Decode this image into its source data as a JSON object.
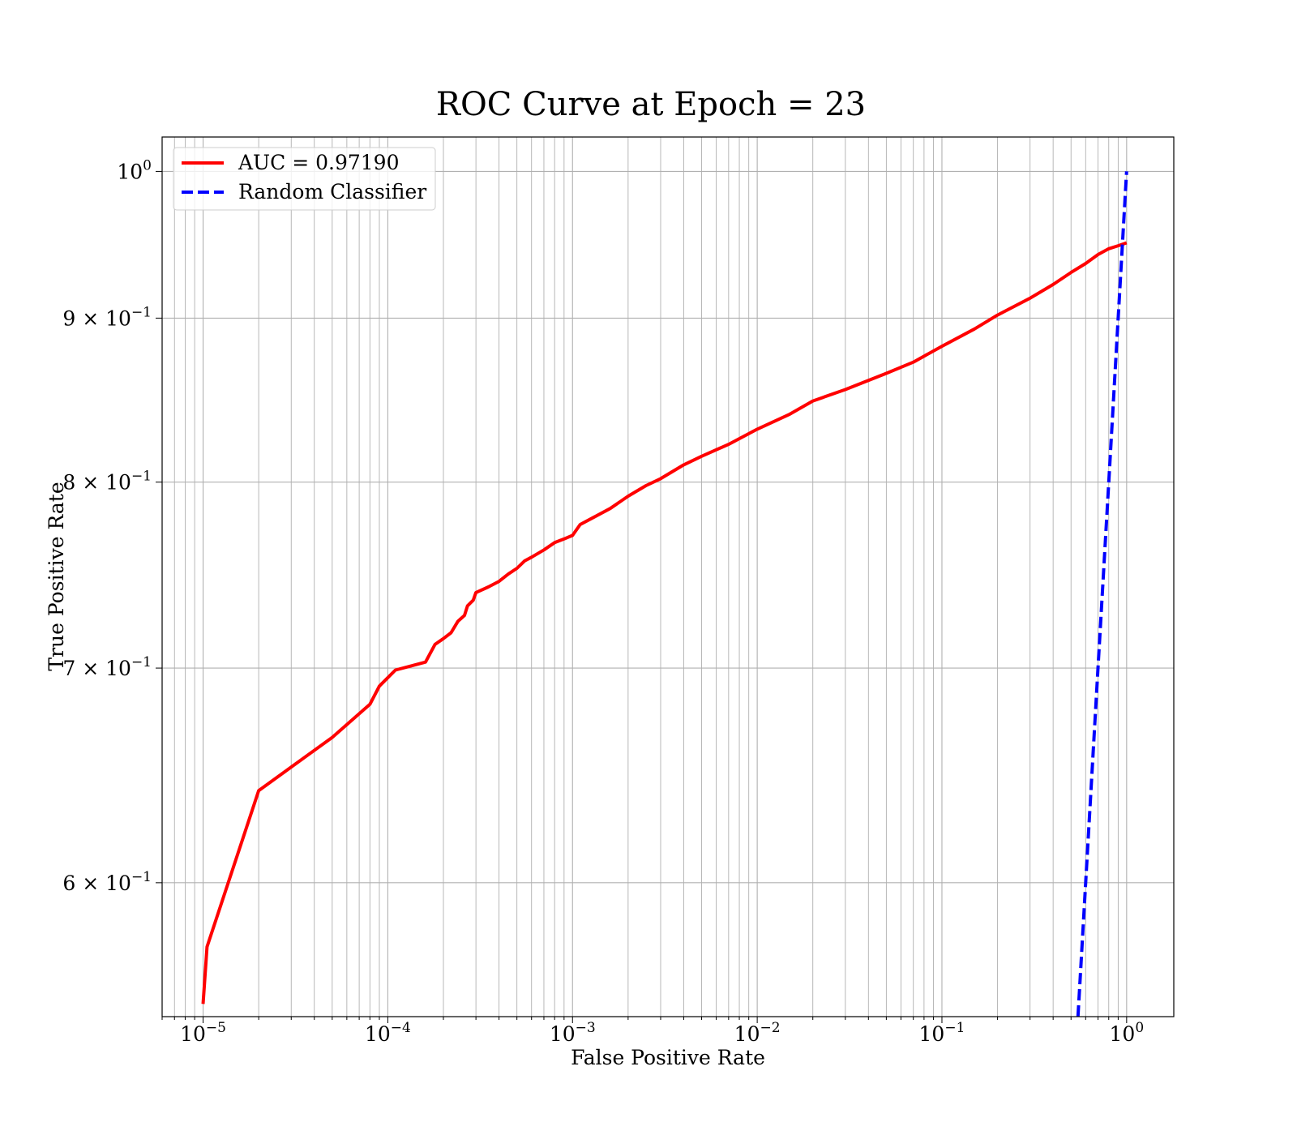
{
  "chart_data": {
    "type": "line",
    "title": "ROC Curve at Epoch = 23",
    "xlabel": "False Positive Rate",
    "ylabel": "True Positive Rate",
    "xscale": "log",
    "yscale": "log",
    "xlim": [
      6e-06,
      1.8
    ],
    "ylim": [
      0.545,
      1.025
    ],
    "grid": "major-and-minor",
    "legend_placement": "upper-left",
    "x_tick_labels": [
      {
        "base": "10",
        "exp": "−5",
        "value": 1e-05
      },
      {
        "base": "10",
        "exp": "−4",
        "value": 0.0001
      },
      {
        "base": "10",
        "exp": "−3",
        "value": 0.001
      },
      {
        "base": "10",
        "exp": "−2",
        "value": 0.01
      },
      {
        "base": "10",
        "exp": "−1",
        "value": 0.1
      },
      {
        "base": "10",
        "exp": "0",
        "value": 1
      }
    ],
    "y_tick_labels": [
      {
        "mant": "",
        "base": "10",
        "exp": "0",
        "value": 1.0
      },
      {
        "mant": "9 × ",
        "base": "10",
        "exp": "−1",
        "value": 0.9
      },
      {
        "mant": "8 × ",
        "base": "10",
        "exp": "−1",
        "value": 0.8
      },
      {
        "mant": "7 × ",
        "base": "10",
        "exp": "−1",
        "value": 0.7
      },
      {
        "mant": "6 × ",
        "base": "10",
        "exp": "−1",
        "value": 0.6
      }
    ],
    "series": [
      {
        "name": "AUC = 0.97190",
        "color": "#ff0000",
        "style": "solid",
        "x": [
          1e-05,
          1.05e-05,
          2e-05,
          3e-05,
          5e-05,
          8e-05,
          9e-05,
          0.00011,
          0.00016,
          0.00018,
          0.0002,
          0.00022,
          0.00024,
          0.00026,
          0.00027,
          0.00029,
          0.0003,
          0.00035,
          0.0004,
          0.00045,
          0.0005,
          0.00055,
          0.0006,
          0.0007,
          0.0008,
          0.0009,
          0.001,
          0.0011,
          0.0013,
          0.0016,
          0.002,
          0.0025,
          0.003,
          0.004,
          0.005,
          0.007,
          0.01,
          0.015,
          0.02,
          0.03,
          0.05,
          0.07,
          0.1,
          0.15,
          0.2,
          0.3,
          0.4,
          0.5,
          0.6,
          0.7,
          0.8,
          0.9,
          1.0
        ],
        "y": [
          0.55,
          0.573,
          0.641,
          0.652,
          0.666,
          0.682,
          0.691,
          0.699,
          0.703,
          0.712,
          0.715,
          0.718,
          0.724,
          0.727,
          0.732,
          0.735,
          0.739,
          0.742,
          0.745,
          0.749,
          0.752,
          0.756,
          0.758,
          0.762,
          0.766,
          0.768,
          0.77,
          0.776,
          0.78,
          0.785,
          0.792,
          0.798,
          0.802,
          0.81,
          0.815,
          0.822,
          0.831,
          0.84,
          0.848,
          0.855,
          0.865,
          0.872,
          0.882,
          0.893,
          0.902,
          0.913,
          0.922,
          0.93,
          0.936,
          0.942,
          0.946,
          0.948,
          0.95
        ]
      },
      {
        "name": "Random Classifier",
        "color": "#0000ff",
        "style": "dashed",
        "x": [
          0.545,
          0.6,
          0.7,
          0.8,
          0.9,
          1.0
        ],
        "y": [
          0.545,
          0.6,
          0.7,
          0.8,
          0.9,
          1.0
        ]
      }
    ]
  }
}
